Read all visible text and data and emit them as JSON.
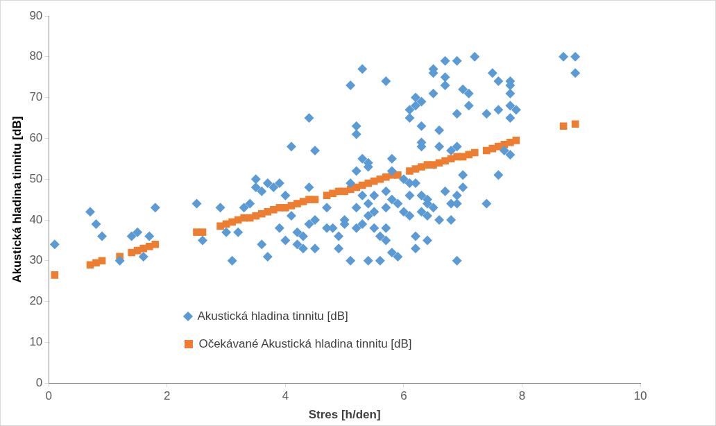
{
  "chart_data": {
    "type": "scatter",
    "xlabel": "Stres [h/den]",
    "ylabel": "Akustická hladina tinnitu [dB]",
    "xlim": [
      0,
      10
    ],
    "xticks": [
      0,
      2,
      4,
      6,
      8,
      10
    ],
    "ylim": [
      0,
      90
    ],
    "yticks": [
      0,
      10,
      20,
      30,
      40,
      50,
      60,
      70,
      80,
      90
    ],
    "grid": false,
    "legend": "bottom",
    "series": [
      {
        "name": "Akustická hladina tinnitu [dB]",
        "color": "#5b9bd5",
        "marker": "diamond",
        "x": [
          0.1,
          0.7,
          0.8,
          0.9,
          1.2,
          1.4,
          1.5,
          1.6,
          1.7,
          1.8,
          2.5,
          2.6,
          2.9,
          3.0,
          3.1,
          3.2,
          3.3,
          3.4,
          3.5,
          3.5,
          3.6,
          3.6,
          3.7,
          3.7,
          3.8,
          3.9,
          3.9,
          4.0,
          4.0,
          4.1,
          4.1,
          4.2,
          4.2,
          4.3,
          4.3,
          4.4,
          4.4,
          4.4,
          4.5,
          4.5,
          4.5,
          4.7,
          4.7,
          4.8,
          4.9,
          4.9,
          5.0,
          5.0,
          5.1,
          5.1,
          5.1,
          5.2,
          5.2,
          5.2,
          5.2,
          5.2,
          5.3,
          5.3,
          5.3,
          5.3,
          5.4,
          5.4,
          5.4,
          5.4,
          5.4,
          5.5,
          5.5,
          5.5,
          5.6,
          5.6,
          5.7,
          5.7,
          5.7,
          5.7,
          5.7,
          5.8,
          5.8,
          5.8,
          5.8,
          5.9,
          5.9,
          6.0,
          6.0,
          6.1,
          6.1,
          6.1,
          6.1,
          6.1,
          6.2,
          6.2,
          6.2,
          6.2,
          6.2,
          6.3,
          6.3,
          6.3,
          6.3,
          6.3,
          6.3,
          6.4,
          6.4,
          6.4,
          6.4,
          6.5,
          6.5,
          6.5,
          6.5,
          6.6,
          6.6,
          6.6,
          6.7,
          6.7,
          6.7,
          6.7,
          6.8,
          6.8,
          6.8,
          6.9,
          6.9,
          6.9,
          6.9,
          6.9,
          6.9,
          7.0,
          7.0,
          7.0,
          7.1,
          7.1,
          7.2,
          7.4,
          7.4,
          7.5,
          7.6,
          7.6,
          7.6,
          7.7,
          7.8,
          7.8,
          7.8,
          7.8,
          7.8,
          7.8,
          7.9,
          8.7,
          8.9,
          8.9
        ],
        "values": [
          34,
          42,
          39,
          36,
          30,
          36,
          37,
          31,
          36,
          43,
          44,
          35,
          43,
          37,
          30,
          37,
          43,
          44,
          50,
          48,
          47,
          34,
          49,
          31,
          48,
          49,
          38,
          46,
          35,
          58,
          41,
          37,
          34,
          36,
          33,
          65,
          48,
          39,
          57,
          40,
          33,
          43,
          38,
          38,
          36,
          33,
          40,
          39,
          73,
          49,
          30,
          63,
          61,
          52,
          43,
          38,
          77,
          55,
          46,
          39,
          54,
          53,
          44,
          41,
          30,
          46,
          42,
          38,
          36,
          30,
          74,
          47,
          43,
          38,
          35,
          55,
          52,
          45,
          32,
          44,
          31,
          50,
          42,
          67,
          65,
          49,
          46,
          41,
          70,
          68,
          49,
          36,
          33,
          69,
          63,
          59,
          58,
          46,
          42,
          45,
          44,
          41,
          35,
          77,
          76,
          71,
          43,
          62,
          58,
          40,
          79,
          75,
          73,
          47,
          57,
          44,
          40,
          79,
          66,
          58,
          46,
          44,
          30,
          72,
          51,
          48,
          71,
          68,
          80,
          66,
          44,
          76,
          74,
          67,
          51,
          57,
          74,
          73,
          71,
          68,
          65,
          56,
          67,
          80,
          80,
          76
        ]
      },
      {
        "name": "Očekávané Akustická hladina tinnitu [dB]",
        "color": "#ed7d31",
        "marker": "square",
        "x": [
          0.1,
          0.7,
          0.8,
          0.9,
          1.2,
          1.4,
          1.5,
          1.6,
          1.7,
          1.8,
          2.5,
          2.6,
          2.9,
          3.0,
          3.1,
          3.2,
          3.3,
          3.4,
          3.5,
          3.6,
          3.7,
          3.8,
          3.9,
          4.0,
          4.1,
          4.2,
          4.3,
          4.4,
          4.5,
          4.7,
          4.8,
          4.9,
          5.0,
          5.1,
          5.2,
          5.3,
          5.4,
          5.5,
          5.6,
          5.7,
          5.8,
          5.9,
          6.1,
          6.2,
          6.3,
          6.4,
          6.5,
          6.6,
          6.7,
          6.8,
          6.9,
          7.0,
          7.1,
          7.2,
          7.4,
          7.5,
          7.6,
          7.7,
          7.8,
          7.9,
          8.7,
          8.9
        ],
        "values": [
          26.5,
          29,
          29.5,
          30,
          31,
          32,
          32.5,
          33,
          33.5,
          34,
          37,
          37,
          38.5,
          39,
          39.5,
          40,
          40.5,
          40.5,
          41,
          41.5,
          42,
          42.5,
          43,
          43,
          43.5,
          44,
          44.5,
          45,
          45,
          46,
          46.5,
          47,
          47,
          47.5,
          48,
          48.5,
          49,
          49.5,
          50,
          50.5,
          51,
          51,
          52,
          52.5,
          53,
          53.5,
          53.5,
          54,
          54.5,
          55,
          55.5,
          55.5,
          56,
          56.5,
          57,
          57.5,
          58,
          58.5,
          59,
          59.5,
          63,
          63.5
        ]
      }
    ]
  }
}
